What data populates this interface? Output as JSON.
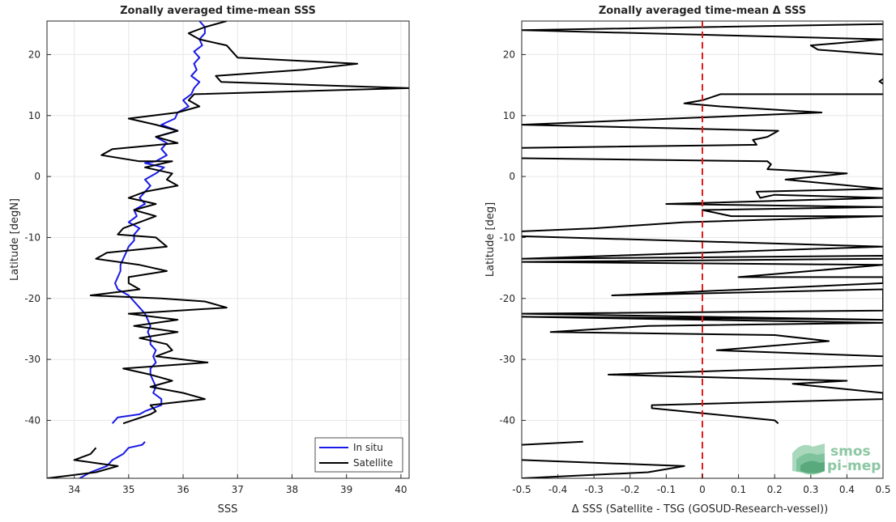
{
  "chart_data": [
    {
      "type": "line",
      "title": "Zonally averaged time-mean SSS",
      "xlabel": "SSS",
      "ylabel": "Latitude [degN]",
      "xlim": [
        33.5,
        40.15
      ],
      "ylim": [
        -49.5,
        25.5
      ],
      "xticks": [
        34,
        35,
        36,
        37,
        38,
        39,
        40
      ],
      "yticks": [
        20,
        10,
        0,
        -10,
        -20,
        -30,
        -40
      ],
      "grid": true,
      "legend": {
        "placement": "bottom-right",
        "entries": [
          "In situ",
          "Satellite"
        ]
      },
      "series": [
        {
          "name": "In situ",
          "color": "#1a1ae6",
          "segments": [
            [
              [
                36.3,
                25.5
              ],
              [
                36.4,
                24.5
              ],
              [
                36.4,
                23.5
              ],
              [
                36.3,
                22.5
              ],
              [
                36.35,
                21.5
              ],
              [
                36.2,
                20.5
              ],
              [
                36.3,
                19.5
              ],
              [
                36.2,
                18.5
              ],
              [
                36.25,
                17.5
              ],
              [
                36.15,
                16.5
              ],
              [
                36.3,
                15.5
              ],
              [
                36.2,
                14.5
              ],
              [
                36.15,
                13.5
              ],
              [
                36.0,
                12.5
              ],
              [
                36.1,
                11.5
              ],
              [
                35.9,
                10.5
              ],
              [
                35.85,
                9.5
              ],
              [
                35.6,
                8.5
              ],
              [
                35.9,
                7.5
              ],
              [
                35.5,
                6.5
              ],
              [
                35.7,
                5.5
              ],
              [
                35.6,
                4.5
              ],
              [
                35.7,
                3.5
              ],
              [
                35.5,
                2.5
              ],
              [
                35.3,
                2.2
              ],
              [
                35.65,
                1.5
              ],
              [
                35.5,
                0.5
              ],
              [
                35.3,
                -0.5
              ],
              [
                35.4,
                -1.5
              ],
              [
                35.3,
                -2.5
              ],
              [
                35.2,
                -3.5
              ],
              [
                35.3,
                -4.5
              ],
              [
                35.1,
                -5.5
              ],
              [
                35.15,
                -6.5
              ],
              [
                35.0,
                -7.5
              ],
              [
                35.2,
                -8.5
              ],
              [
                35.1,
                -9.5
              ],
              [
                35.1,
                -10.5
              ],
              [
                35.0,
                -11.5
              ],
              [
                34.95,
                -12.5
              ],
              [
                34.9,
                -13.5
              ],
              [
                34.85,
                -14.5
              ],
              [
                34.85,
                -15.5
              ],
              [
                34.8,
                -16.5
              ],
              [
                34.75,
                -17.5
              ],
              [
                34.8,
                -18.5
              ],
              [
                35.0,
                -19.5
              ],
              [
                35.1,
                -20.5
              ],
              [
                35.2,
                -21.5
              ],
              [
                35.3,
                -22.5
              ],
              [
                35.35,
                -23.5
              ],
              [
                35.4,
                -24.5
              ],
              [
                35.35,
                -25.5
              ],
              [
                35.4,
                -26.5
              ],
              [
                35.4,
                -27.5
              ],
              [
                35.5,
                -28.5
              ],
              [
                35.45,
                -29.5
              ],
              [
                35.5,
                -30.5
              ],
              [
                35.4,
                -31.5
              ],
              [
                35.4,
                -32.5
              ],
              [
                35.45,
                -33.5
              ],
              [
                35.5,
                -34.5
              ],
              [
                35.45,
                -35.5
              ],
              [
                35.6,
                -36.5
              ],
              [
                35.6,
                -37.5
              ],
              [
                35.3,
                -38.5
              ],
              [
                35.2,
                -39.0
              ],
              [
                34.8,
                -39.5
              ],
              [
                34.7,
                -40.5
              ]
            ],
            [
              [
                35.3,
                -43.5
              ],
              [
                35.25,
                -44.0
              ],
              [
                35.0,
                -44.5
              ],
              [
                34.9,
                -45.5
              ],
              [
                34.7,
                -46.5
              ],
              [
                34.6,
                -47.5
              ],
              [
                34.3,
                -48.5
              ],
              [
                34.1,
                -49.5
              ]
            ]
          ]
        },
        {
          "name": "Satellite",
          "color": "#000000",
          "segments": [
            [
              [
                36.8,
                25.5
              ],
              [
                36.4,
                24.5
              ],
              [
                36.1,
                23.5
              ],
              [
                36.3,
                22.5
              ],
              [
                36.8,
                21.5
              ],
              [
                37.0,
                19.5
              ],
              [
                39.2,
                18.5
              ],
              [
                38.2,
                17.5
              ],
              [
                36.6,
                16.5
              ],
              [
                36.7,
                15.5
              ],
              [
                40.15,
                14.5
              ],
              [
                36.2,
                13.5
              ],
              [
                36.1,
                12.5
              ],
              [
                36.3,
                11.5
              ],
              [
                35.9,
                10.5
              ],
              [
                35.0,
                9.5
              ],
              [
                35.5,
                8.5
              ],
              [
                35.9,
                7.5
              ],
              [
                35.5,
                6.5
              ],
              [
                35.9,
                5.5
              ],
              [
                34.7,
                4.5
              ],
              [
                34.5,
                3.5
              ],
              [
                35.2,
                2.5
              ],
              [
                35.8,
                2.5
              ],
              [
                35.3,
                1.5
              ],
              [
                35.8,
                0.5
              ],
              [
                35.7,
                -0.5
              ],
              [
                35.9,
                -1.5
              ],
              [
                35.3,
                -2.5
              ],
              [
                35.0,
                -3.5
              ],
              [
                35.5,
                -4.5
              ],
              [
                35.1,
                -5.5
              ],
              [
                35.5,
                -6.5
              ],
              [
                35.2,
                -7.5
              ],
              [
                34.9,
                -8.5
              ],
              [
                34.8,
                -9.5
              ],
              [
                35.5,
                -10.0
              ],
              [
                35.7,
                -11.5
              ],
              [
                34.6,
                -12.5
              ],
              [
                34.4,
                -13.5
              ],
              [
                35.2,
                -14.5
              ],
              [
                35.7,
                -15.5
              ],
              [
                35.0,
                -16.5
              ],
              [
                35.0,
                -17.5
              ],
              [
                35.2,
                -18.5
              ],
              [
                34.3,
                -19.5
              ],
              [
                35.6,
                -20.0
              ],
              [
                36.4,
                -20.5
              ],
              [
                36.8,
                -21.5
              ],
              [
                35.0,
                -22.5
              ],
              [
                35.9,
                -23.5
              ],
              [
                35.1,
                -24.5
              ],
              [
                35.9,
                -25.5
              ],
              [
                35.2,
                -26.5
              ],
              [
                35.7,
                -27.5
              ],
              [
                35.8,
                -28.5
              ],
              [
                35.5,
                -29.5
              ],
              [
                36.45,
                -30.5
              ],
              [
                34.9,
                -31.5
              ],
              [
                35.4,
                -32.5
              ],
              [
                35.8,
                -33.5
              ],
              [
                35.4,
                -34.5
              ],
              [
                36.0,
                -35.5
              ],
              [
                36.4,
                -36.5
              ],
              [
                35.4,
                -37.5
              ],
              [
                35.5,
                -38.5
              ],
              [
                35.4,
                -39.0
              ],
              [
                34.9,
                -40.5
              ]
            ],
            [
              [
                34.4,
                -44.5
              ],
              [
                34.3,
                -45.5
              ],
              [
                34.0,
                -46.5
              ],
              [
                34.8,
                -47.5
              ],
              [
                34.4,
                -48.5
              ],
              [
                33.5,
                -49.5
              ]
            ]
          ]
        }
      ]
    },
    {
      "type": "line",
      "title": "Zonally averaged time-mean Δ SSS",
      "xlabel": "Δ SSS (Satellite - TSG (GOSUD-Research-vessel))",
      "ylabel": "Latitude [deg]",
      "xlim": [
        -0.5,
        0.5
      ],
      "ylim": [
        -49.5,
        25.5
      ],
      "xticks": [
        -0.5,
        -0.4,
        -0.3,
        -0.2,
        -0.1,
        0,
        0.1,
        0.2,
        0.3,
        0.4,
        0.5
      ],
      "yticks": [
        20,
        10,
        0,
        -10,
        -20,
        -30,
        -40
      ],
      "grid": true,
      "reference_line": {
        "x": 0,
        "color": "#e41a1c",
        "style": "dashed"
      },
      "series": [
        {
          "color": "#000000",
          "segments": [
            [
              [
                0.5,
                25.0
              ],
              [
                -0.5,
                24.0
              ],
              [
                0.5,
                22.5
              ],
              [
                0.3,
                21.5
              ],
              [
                0.32,
                20.8
              ],
              [
                0.5,
                20.0
              ]
            ],
            [
              [
                0.5,
                16.0
              ],
              [
                0.49,
                15.6
              ],
              [
                0.5,
                15.2
              ]
            ],
            [
              [
                0.5,
                13.5
              ],
              [
                0.05,
                13.5
              ],
              [
                0.0,
                12.5
              ],
              [
                -0.05,
                12.0
              ],
              [
                0.05,
                11.5
              ],
              [
                0.33,
                10.5
              ],
              [
                -0.5,
                8.5
              ],
              [
                0.21,
                7.5
              ],
              [
                0.18,
                6.5
              ],
              [
                0.14,
                6.0
              ],
              [
                0.15,
                5.2
              ],
              [
                -0.5,
                4.7
              ]
            ],
            [
              [
                -0.5,
                3.0
              ],
              [
                0.18,
                2.5
              ],
              [
                0.19,
                2.0
              ],
              [
                0.18,
                1.2
              ],
              [
                0.4,
                0.5
              ],
              [
                0.23,
                -0.5
              ],
              [
                0.5,
                -2.0
              ],
              [
                0.15,
                -2.5
              ],
              [
                0.16,
                -3.5
              ],
              [
                0.2,
                -3.0
              ],
              [
                0.5,
                -3.5
              ],
              [
                -0.1,
                -4.5
              ],
              [
                0.5,
                -5.0
              ],
              [
                0.0,
                -5.5
              ],
              [
                0.08,
                -6.5
              ],
              [
                0.5,
                -6.5
              ],
              [
                -0.05,
                -7.5
              ],
              [
                -0.3,
                -8.5
              ],
              [
                -0.5,
                -9.0
              ]
            ],
            [
              [
                -0.5,
                -9.8
              ],
              [
                0.5,
                -11.5
              ],
              [
                -0.5,
                -13.5
              ],
              [
                0.5,
                -13.0
              ],
              [
                0.5,
                -13.5
              ],
              [
                -0.5,
                -14.0
              ],
              [
                0.5,
                -14.5
              ],
              [
                0.1,
                -16.5
              ],
              [
                0.5,
                -16.5
              ],
              [
                0.5,
                -17.5
              ],
              [
                -0.25,
                -19.5
              ],
              [
                0.5,
                -18.5
              ],
              [
                0.5,
                -20.0
              ],
              [
                0.5,
                -22.0
              ],
              [
                -0.5,
                -22.5
              ],
              [
                0.5,
                -23.5
              ],
              [
                -0.5,
                -23.0
              ],
              [
                0.5,
                -24.0
              ],
              [
                -0.15,
                -24.5
              ],
              [
                -0.42,
                -25.5
              ],
              [
                0.2,
                -26.0
              ],
              [
                0.35,
                -27.0
              ],
              [
                0.04,
                -28.5
              ],
              [
                0.5,
                -29.5
              ]
            ],
            [
              [
                0.5,
                -31.0
              ],
              [
                -0.26,
                -32.5
              ],
              [
                0.4,
                -33.5
              ],
              [
                0.25,
                -34.0
              ],
              [
                0.5,
                -35.5
              ],
              [
                0.5,
                -36.5
              ],
              [
                -0.14,
                -37.5
              ],
              [
                -0.14,
                -38.0
              ],
              [
                0.2,
                -40.0
              ],
              [
                0.21,
                -40.5
              ]
            ],
            [
              [
                -0.5,
                -44.0
              ],
              [
                -0.33,
                -43.5
              ]
            ],
            [
              [
                -0.5,
                -46.5
              ],
              [
                -0.05,
                -47.5
              ],
              [
                -0.15,
                -48.5
              ],
              [
                -0.5,
                -49.5
              ]
            ]
          ]
        }
      ]
    }
  ],
  "logo": {
    "line1": "smos",
    "line2": "pi-mep"
  }
}
